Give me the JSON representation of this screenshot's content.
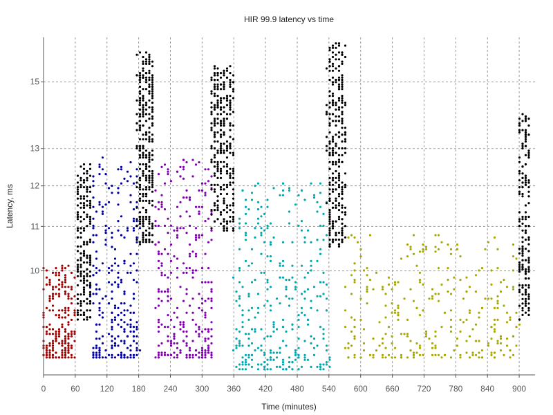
{
  "chart_data": {
    "type": "scatter",
    "title": "HIR 99.9 latency vs time",
    "xlabel": "Time (minutes)",
    "ylabel": "Latency, ms",
    "xlim": [
      0,
      930
    ],
    "ylim": [
      8.0,
      16.5
    ],
    "y_scale": "log",
    "grid": true,
    "x_ticks": [
      0,
      60,
      120,
      180,
      240,
      300,
      360,
      420,
      480,
      540,
      600,
      660,
      720,
      780,
      840,
      900
    ],
    "y_ticks": [
      10,
      11,
      12,
      13,
      15
    ],
    "colors": {
      "red": "#a00000",
      "blue": "#0000a0",
      "purple": "#8000b0",
      "cyan": "#00a8b0",
      "olive": "#a8a800",
      "black": "#000000"
    },
    "series": [
      {
        "color": "red",
        "x_range": [
          0,
          60
        ],
        "y_range": [
          8.3,
          10.1
        ],
        "count": 220
      },
      {
        "color": "black",
        "x_range": [
          62,
          90
        ],
        "y_range": [
          9.0,
          12.6
        ],
        "count": 200
      },
      {
        "color": "blue",
        "x_range": [
          90,
          180
        ],
        "y_range": [
          8.3,
          12.8
        ],
        "count": 280
      },
      {
        "color": "black",
        "x_range": [
          178,
          208
        ],
        "y_range": [
          10.6,
          16.0
        ],
        "count": 300
      },
      {
        "color": "purple",
        "x_range": [
          210,
          320
        ],
        "y_range": [
          8.3,
          12.7
        ],
        "count": 300
      },
      {
        "color": "black",
        "x_range": [
          318,
          360
        ],
        "y_range": [
          10.9,
          15.5
        ],
        "count": 300
      },
      {
        "color": "cyan",
        "x_range": [
          360,
          540
        ],
        "y_range": [
          8.1,
          12.1
        ],
        "count": 340
      },
      {
        "color": "black",
        "x_range": [
          538,
          570
        ],
        "y_range": [
          10.5,
          16.3
        ],
        "count": 300
      },
      {
        "color": "olive",
        "x_range": [
          570,
          900
        ],
        "y_range": [
          8.3,
          10.8
        ],
        "count": 300
      },
      {
        "color": "black",
        "x_range": [
          900,
          920
        ],
        "y_range": [
          9.0,
          14.0
        ],
        "count": 200
      }
    ]
  }
}
